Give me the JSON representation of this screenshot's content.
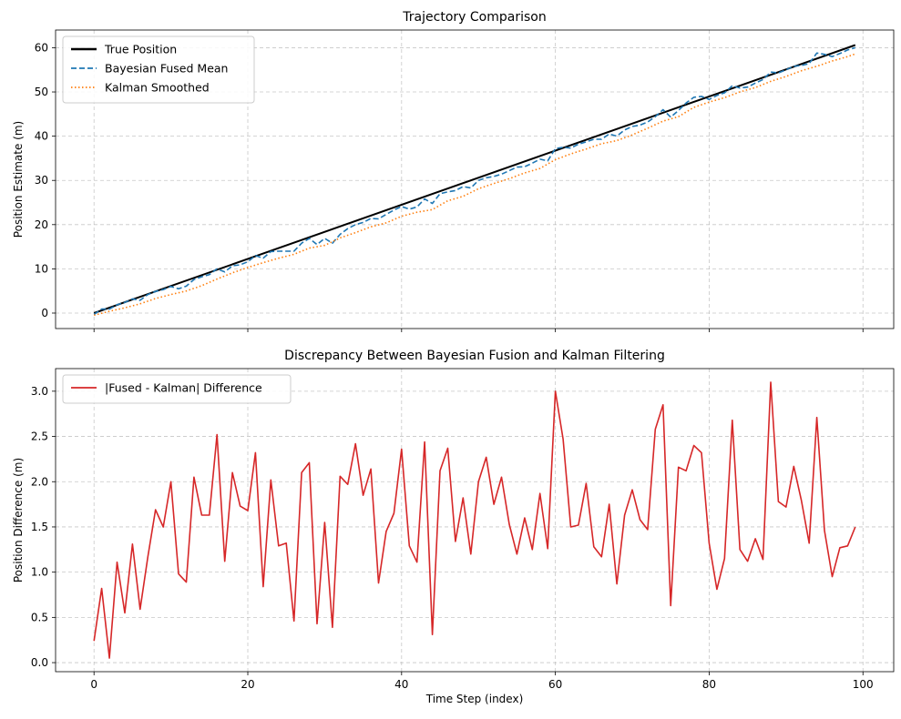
{
  "chart_data": [
    {
      "type": "line",
      "title": "Trajectory Comparison",
      "xlabel": "",
      "ylabel": "Position Estimate (m)",
      "xlim": [
        -5,
        104
      ],
      "ylim": [
        -3.5,
        64
      ],
      "yticks": [
        0,
        10,
        20,
        30,
        40,
        50,
        60
      ],
      "xticks": [
        0,
        20,
        40,
        60,
        80,
        100
      ],
      "show_x_tick_labels": false,
      "grid": true,
      "legend_position": "upper-left",
      "series": [
        {
          "name": "True Position",
          "color": "#000000",
          "style": "solid",
          "x": [
            0,
            99
          ],
          "values": [
            0,
            60.6
          ]
        },
        {
          "name": "Bayesian Fused Mean",
          "color": "#1f77b4",
          "style": "dashed",
          "x": [
            0,
            1,
            2,
            3,
            4,
            5,
            6,
            7,
            8,
            9,
            10,
            11,
            12,
            13,
            14,
            15,
            16,
            17,
            18,
            19,
            20,
            21,
            22,
            23,
            24,
            25,
            26,
            27,
            28,
            29,
            30,
            31,
            32,
            33,
            34,
            35,
            36,
            37,
            38,
            39,
            40,
            41,
            42,
            43,
            44,
            45,
            46,
            47,
            48,
            49,
            50,
            51,
            52,
            53,
            54,
            55,
            56,
            57,
            58,
            59,
            60,
            61,
            62,
            63,
            64,
            65,
            66,
            67,
            68,
            69,
            70,
            71,
            72,
            73,
            74,
            75,
            76,
            77,
            78,
            79,
            80,
            81,
            82,
            83,
            84,
            85,
            86,
            87,
            88,
            89,
            90,
            91,
            92,
            93,
            94,
            95,
            96,
            97,
            98,
            99
          ],
          "values": [
            -0.3,
            0.9,
            0.9,
            1.9,
            2.4,
            3.2,
            2.9,
            4.2,
            4.9,
            5.3,
            6.0,
            5.5,
            6.1,
            7.6,
            8.2,
            8.7,
            10.0,
            9.3,
            10.7,
            10.9,
            11.6,
            13.0,
            12.4,
            13.9,
            14.0,
            14.0,
            14.0,
            15.8,
            16.9,
            15.5,
            16.9,
            15.8,
            17.8,
            19.1,
            20.0,
            20.5,
            21.4,
            21.3,
            22.3,
            23.3,
            24.1,
            23.5,
            24.0,
            25.8,
            24.8,
            27.0,
            27.4,
            27.7,
            28.6,
            28.3,
            30.0,
            30.6,
            30.9,
            31.4,
            32.2,
            33.0,
            33.1,
            33.9,
            34.8,
            34.4,
            37.2,
            37.5,
            37.3,
            38.2,
            38.7,
            39.3,
            39.3,
            40.5,
            40.0,
            41.4,
            42.2,
            42.5,
            43.2,
            44.4,
            46.0,
            44.3,
            45.8,
            47.5,
            48.8,
            49.0,
            48.3,
            49.2,
            49.8,
            51.4,
            50.9,
            51.1,
            52.0,
            52.8,
            54.5,
            54.3,
            55.0,
            55.8,
            56.0,
            56.4,
            58.8,
            58.5,
            58.0,
            58.7,
            59.5,
            60.0
          ]
        },
        {
          "name": "Kalman Smoothed",
          "color": "#ff7f0e",
          "style": "dotted",
          "x": [
            0,
            2,
            4,
            6,
            8,
            10,
            12,
            14,
            16,
            18,
            20,
            22,
            24,
            26,
            28,
            30,
            32,
            34,
            36,
            38,
            40,
            42,
            44,
            46,
            48,
            50,
            52,
            54,
            56,
            58,
            60,
            62,
            64,
            66,
            68,
            70,
            72,
            74,
            76,
            78,
            80,
            82,
            84,
            86,
            88,
            90,
            92,
            94,
            96,
            98,
            99
          ],
          "values": [
            -0.5,
            0.4,
            1.2,
            2.1,
            3.3,
            4.2,
            5.0,
            6.2,
            7.7,
            9.1,
            10.3,
            11.4,
            12.4,
            13.3,
            14.7,
            15.3,
            17.0,
            18.2,
            19.5,
            20.4,
            21.9,
            22.8,
            23.4,
            25.4,
            26.4,
            28.1,
            29.3,
            30.4,
            31.7,
            32.7,
            34.7,
            36.0,
            37.1,
            38.3,
            39.0,
            40.3,
            41.8,
            43.4,
            44.4,
            46.5,
            47.7,
            48.7,
            50.0,
            51.0,
            52.4,
            53.5,
            54.8,
            55.8,
            57.0,
            58.0,
            58.6
          ]
        }
      ]
    },
    {
      "type": "line",
      "title": "Discrepancy Between Bayesian Fusion and Kalman Filtering",
      "xlabel": "Time Step (index)",
      "ylabel": "Position Difference (m)",
      "xlim": [
        -5,
        104
      ],
      "ylim": [
        -0.1,
        3.25
      ],
      "yticks": [
        0.0,
        0.5,
        1.0,
        1.5,
        2.0,
        2.5,
        3.0
      ],
      "ytick_labels": [
        "0.0",
        "0.5",
        "1.0",
        "1.5",
        "2.0",
        "2.5",
        "3.0"
      ],
      "xticks": [
        0,
        20,
        40,
        60,
        80,
        100
      ],
      "xtick_labels": [
        "0",
        "20",
        "40",
        "60",
        "80",
        "100"
      ],
      "grid": true,
      "legend_position": "upper-left",
      "series": [
        {
          "name": "|Fused - Kalman| Difference",
          "color": "#d62728",
          "style": "solid",
          "x": [
            0,
            1,
            2,
            3,
            4,
            5,
            6,
            7,
            8,
            9,
            10,
            11,
            12,
            13,
            14,
            15,
            16,
            17,
            18,
            19,
            20,
            21,
            22,
            23,
            24,
            25,
            26,
            27,
            28,
            29,
            30,
            31,
            32,
            33,
            34,
            35,
            36,
            37,
            38,
            39,
            40,
            41,
            42,
            43,
            44,
            45,
            46,
            47,
            48,
            49,
            50,
            51,
            52,
            53,
            54,
            55,
            56,
            57,
            58,
            59,
            60,
            61,
            62,
            63,
            64,
            65,
            66,
            67,
            68,
            69,
            70,
            71,
            72,
            73,
            74,
            75,
            76,
            77,
            78,
            79,
            80,
            81,
            82,
            83,
            84,
            85,
            86,
            87,
            88,
            89,
            90,
            91,
            92,
            93,
            94,
            95,
            96,
            97,
            98,
            99
          ],
          "values": [
            0.24,
            0.82,
            0.05,
            1.11,
            0.55,
            1.31,
            0.59,
            1.17,
            1.69,
            1.5,
            2.0,
            0.98,
            0.89,
            2.05,
            1.63,
            1.63,
            2.52,
            1.12,
            2.1,
            1.73,
            1.68,
            2.32,
            0.84,
            2.02,
            1.29,
            1.32,
            0.46,
            2.1,
            2.21,
            0.43,
            1.55,
            0.39,
            2.06,
            1.97,
            2.42,
            1.85,
            2.14,
            0.88,
            1.45,
            1.65,
            2.36,
            1.29,
            1.11,
            2.44,
            0.31,
            2.12,
            2.37,
            1.34,
            1.82,
            1.2,
            2.0,
            2.27,
            1.75,
            2.05,
            1.53,
            1.2,
            1.6,
            1.25,
            1.87,
            1.26,
            3.0,
            2.47,
            1.5,
            1.52,
            1.98,
            1.28,
            1.17,
            1.75,
            0.87,
            1.63,
            1.91,
            1.58,
            1.47,
            2.58,
            2.85,
            0.63,
            2.16,
            2.12,
            2.4,
            2.32,
            1.32,
            0.81,
            1.15,
            2.68,
            1.25,
            1.12,
            1.37,
            1.14,
            3.1,
            1.78,
            1.72,
            2.17,
            1.79,
            1.32,
            2.71,
            1.46,
            0.95,
            1.27,
            1.29,
            1.5
          ]
        }
      ]
    }
  ]
}
